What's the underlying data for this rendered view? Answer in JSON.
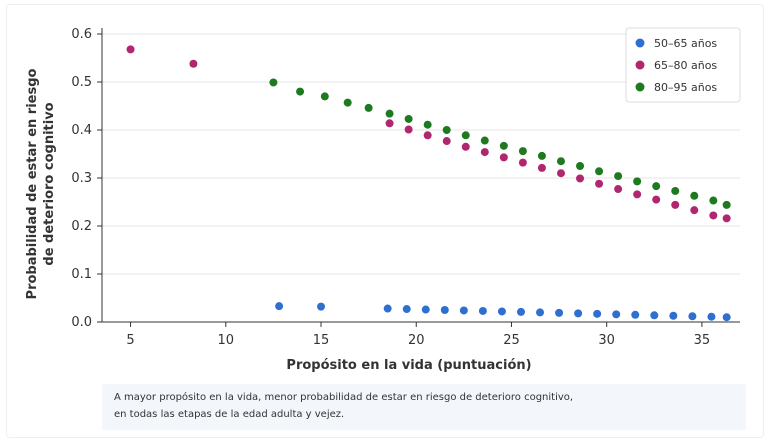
{
  "chart_data": {
    "type": "scatter",
    "xlabel": "Propósito en la vida (puntuación)",
    "ylabel_lines": [
      "Probabilidad de estar en riesgo",
      "de deterioro cognitivo"
    ],
    "xlim": [
      3.5,
      37
    ],
    "ylim": [
      0,
      0.6
    ],
    "xticks": [
      5,
      10,
      15,
      20,
      25,
      30,
      35
    ],
    "yticks": [
      0.0,
      0.1,
      0.2,
      0.3,
      0.4,
      0.5,
      0.6
    ],
    "ytick_labels": [
      "0.0",
      "0.1",
      "0.2",
      "0.3",
      "0.4",
      "0.5",
      "0.6"
    ],
    "grid": "horizontal",
    "legend_position": "top-right",
    "series": [
      {
        "name": "50–65 años",
        "color": "#2f6fd0",
        "points": [
          [
            12.8,
            0.033
          ],
          [
            15.0,
            0.032
          ],
          [
            18.5,
            0.028
          ],
          [
            19.5,
            0.027
          ],
          [
            20.5,
            0.026
          ],
          [
            21.5,
            0.025
          ],
          [
            22.5,
            0.024
          ],
          [
            23.5,
            0.023
          ],
          [
            24.5,
            0.022
          ],
          [
            25.5,
            0.021
          ],
          [
            26.5,
            0.02
          ],
          [
            27.5,
            0.019
          ],
          [
            28.5,
            0.018
          ],
          [
            29.5,
            0.017
          ],
          [
            30.5,
            0.016
          ],
          [
            31.5,
            0.015
          ],
          [
            32.5,
            0.014
          ],
          [
            33.5,
            0.013
          ],
          [
            34.5,
            0.012
          ],
          [
            35.5,
            0.011
          ],
          [
            36.3,
            0.01
          ]
        ]
      },
      {
        "name": "65–80 años",
        "color": "#b0266f",
        "points": [
          [
            5.0,
            0.568
          ],
          [
            8.3,
            0.538
          ],
          [
            18.6,
            0.414
          ],
          [
            19.6,
            0.401
          ],
          [
            20.6,
            0.389
          ],
          [
            21.6,
            0.377
          ],
          [
            22.6,
            0.365
          ],
          [
            23.6,
            0.354
          ],
          [
            24.6,
            0.343
          ],
          [
            25.6,
            0.332
          ],
          [
            26.6,
            0.321
          ],
          [
            27.6,
            0.31
          ],
          [
            28.6,
            0.299
          ],
          [
            29.6,
            0.288
          ],
          [
            30.6,
            0.277
          ],
          [
            31.6,
            0.266
          ],
          [
            32.6,
            0.255
          ],
          [
            33.6,
            0.244
          ],
          [
            34.6,
            0.233
          ],
          [
            35.6,
            0.222
          ],
          [
            36.3,
            0.216
          ]
        ]
      },
      {
        "name": "80–95 años",
        "color": "#1f7a1f",
        "points": [
          [
            12.5,
            0.499
          ],
          [
            13.9,
            0.48
          ],
          [
            15.2,
            0.47
          ],
          [
            16.4,
            0.457
          ],
          [
            17.5,
            0.446
          ],
          [
            18.6,
            0.434
          ],
          [
            19.6,
            0.423
          ],
          [
            20.6,
            0.411
          ],
          [
            21.6,
            0.4
          ],
          [
            22.6,
            0.389
          ],
          [
            23.6,
            0.378
          ],
          [
            24.6,
            0.367
          ],
          [
            25.6,
            0.356
          ],
          [
            26.6,
            0.346
          ],
          [
            27.6,
            0.335
          ],
          [
            28.6,
            0.325
          ],
          [
            29.6,
            0.314
          ],
          [
            30.6,
            0.304
          ],
          [
            31.6,
            0.293
          ],
          [
            32.6,
            0.283
          ],
          [
            33.6,
            0.273
          ],
          [
            34.6,
            0.263
          ],
          [
            35.6,
            0.253
          ],
          [
            36.3,
            0.244
          ]
        ]
      }
    ]
  },
  "caption": {
    "line1": "A mayor propósito en la vida, menor probabilidad de estar en riesgo de deterioro cognitivo,",
    "line2": "en todas las etapas de la edad adulta y vejez."
  }
}
